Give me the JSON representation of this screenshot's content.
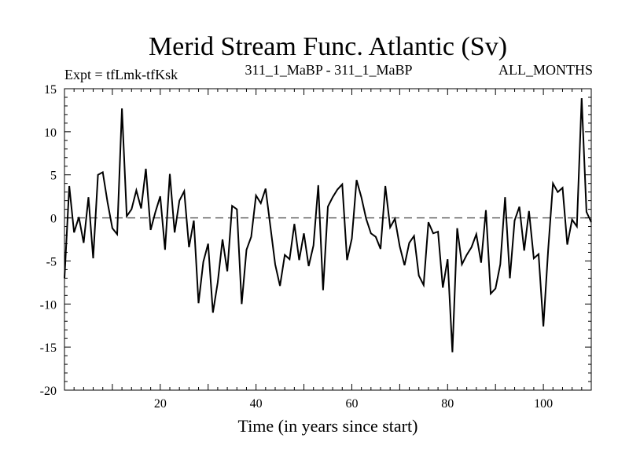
{
  "chart_data": {
    "type": "line",
    "title": "Merid Stream Func. Atlantic (Sv)",
    "subtitle_left": "Expt = tfLmk-tfKsk",
    "subtitle_center": "311_1_MaBP - 311_1_MaBP",
    "subtitle_right": "ALL_MONTHS",
    "xlabel": "Time (in years since start)",
    "ylabel": "",
    "xlim": [
      0,
      110
    ],
    "ylim": [
      -20,
      15
    ],
    "xticks": [
      20,
      40,
      60,
      80,
      100
    ],
    "yticks": [
      -20,
      -15,
      -10,
      -5,
      0,
      5,
      10,
      15
    ],
    "reference_line": 0,
    "series": [
      {
        "name": "Merid Stream Func. Atlantic",
        "x": [
          0,
          1,
          2,
          3,
          4,
          5,
          6,
          7,
          8,
          9,
          10,
          11,
          12,
          13,
          14,
          15,
          16,
          17,
          18,
          19,
          20,
          21,
          22,
          23,
          24,
          25,
          26,
          27,
          28,
          29,
          30,
          31,
          32,
          33,
          34,
          35,
          36,
          37,
          38,
          39,
          40,
          41,
          42,
          43,
          44,
          45,
          46,
          47,
          48,
          49,
          50,
          51,
          52,
          53,
          54,
          55,
          56,
          57,
          58,
          59,
          60,
          61,
          62,
          63,
          64,
          65,
          66,
          67,
          68,
          69,
          70,
          71,
          72,
          73,
          74,
          75,
          76,
          77,
          78,
          79,
          80,
          81,
          82,
          83,
          84,
          85,
          86,
          87,
          88,
          89,
          90,
          91,
          92,
          93,
          94,
          95,
          96,
          97,
          98,
          99,
          100,
          101,
          102,
          103,
          104,
          105,
          106,
          107,
          108,
          109,
          110
        ],
        "y": [
          -7.0,
          3.7,
          -1.7,
          0.1,
          -2.9,
          2.4,
          -4.7,
          5.0,
          5.3,
          1.8,
          -1.2,
          -1.9,
          12.7,
          0.2,
          1.0,
          3.2,
          1.1,
          5.7,
          -1.4,
          0.7,
          2.5,
          -3.7,
          5.1,
          -1.7,
          2.0,
          3.1,
          -3.4,
          -0.3,
          -9.9,
          -5.1,
          -3.0,
          -11.0,
          -7.5,
          -2.5,
          -6.2,
          1.4,
          1.0,
          -10.0,
          -3.7,
          -2.2,
          2.6,
          1.7,
          3.4,
          -1.0,
          -5.4,
          -7.9,
          -4.3,
          -4.8,
          -0.7,
          -4.9,
          -1.8,
          -5.6,
          -3.2,
          3.8,
          -8.4,
          1.3,
          2.4,
          3.3,
          3.9,
          -4.9,
          -2.4,
          4.4,
          2.4,
          -0.1,
          -1.8,
          -2.2,
          -3.6,
          3.7,
          -1.1,
          -0.1,
          -3.3,
          -5.5,
          -2.9,
          -2.1,
          -6.7,
          -7.8,
          -0.5,
          -1.8,
          -1.6,
          -8.1,
          -4.8,
          -15.6,
          -1.2,
          -5.4,
          -4.3,
          -3.4,
          -1.9,
          -5.2,
          0.9,
          -8.8,
          -8.2,
          -5.4,
          2.4,
          -7.0,
          -0.3,
          1.3,
          -3.8,
          0.8,
          -4.7,
          -4.2,
          -12.6,
          -3.7,
          4.0,
          3.0,
          3.5,
          -3.1,
          -0.2,
          -1.0,
          13.9,
          0.7,
          -0.5
        ]
      }
    ],
    "grid": false,
    "legend": "none"
  }
}
